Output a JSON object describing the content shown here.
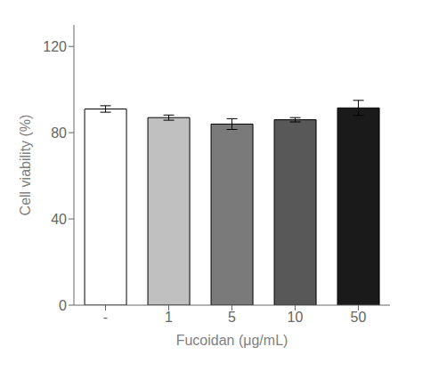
{
  "chart_data": {
    "type": "bar",
    "categories": [
      "-",
      "1",
      "5",
      "10",
      "50"
    ],
    "values": [
      91.0,
      87.0,
      84.0,
      86.0,
      91.5
    ],
    "errors": [
      1.5,
      1.2,
      2.5,
      1.0,
      3.5
    ],
    "colors": [
      "#ffffff",
      "#c0c0c0",
      "#7a7a7a",
      "#585858",
      "#1a1a1a"
    ],
    "ylabel": "Cell viability (%)",
    "xlabel": "Fucoidan (μg/mL)",
    "ylim": [
      0,
      130
    ],
    "yticks": [
      0,
      40,
      80,
      120
    ],
    "grid": false
  }
}
